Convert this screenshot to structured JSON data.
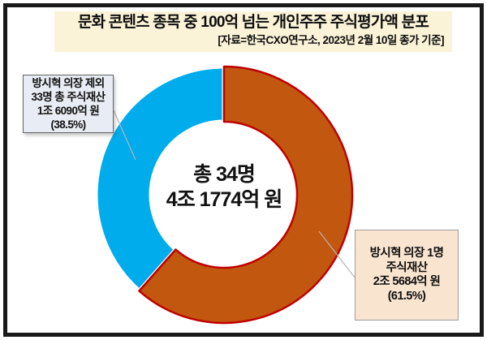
{
  "header": {
    "title": "문화 콘텐츠 종목 중 100억 넘는 개인주주 주식평가액 분포",
    "source": "[자료=한국CXO연구소, 2023년 2월 10일 종가 기준]",
    "bg_color": "#FBF3D7"
  },
  "chart_data": {
    "type": "pie",
    "donut": true,
    "title": "문화 콘텐츠 종목 중 100억 넘는 개인주주 주식평가액 분포",
    "subtitle": "[자료=한국CXO연구소, 2023년 2월 10일 종가 기준]",
    "unit": "억 원",
    "start_angle_deg": 0,
    "direction": "clockwise",
    "legend_position": "callout-labels",
    "series": [
      {
        "name": "방시혁 의장 1명 주식재산",
        "value": 25684,
        "value_label": "2조 5684억 원",
        "percent": 61.5,
        "color": "#C2570F",
        "border_color": "#C00000"
      },
      {
        "name": "방시혁 의장 제외 33명 총 주식재산",
        "value": 16090,
        "value_label": "1조 6090억 원",
        "percent": 38.5,
        "color": "#00ACEC",
        "border_color": "#FFFFFF"
      }
    ],
    "total": {
      "people": "총 34명",
      "amount": "4조 1774억 원",
      "amount_value": 41774
    }
  },
  "center_label": {
    "line1": "총 34명",
    "line2": "4조 1774억 원"
  },
  "callouts": {
    "left": {
      "lines": [
        "방시혁 의장 제외",
        "33명 총 주식재산",
        "1조 6090억 원",
        "(38.5%)"
      ],
      "bg": "#E8ECF4"
    },
    "right": {
      "lines": [
        "방시혁 의장 1명",
        "주식재산",
        "2조 5684억 원",
        "(61.5%)"
      ],
      "bg": "#F9E4D0"
    }
  }
}
